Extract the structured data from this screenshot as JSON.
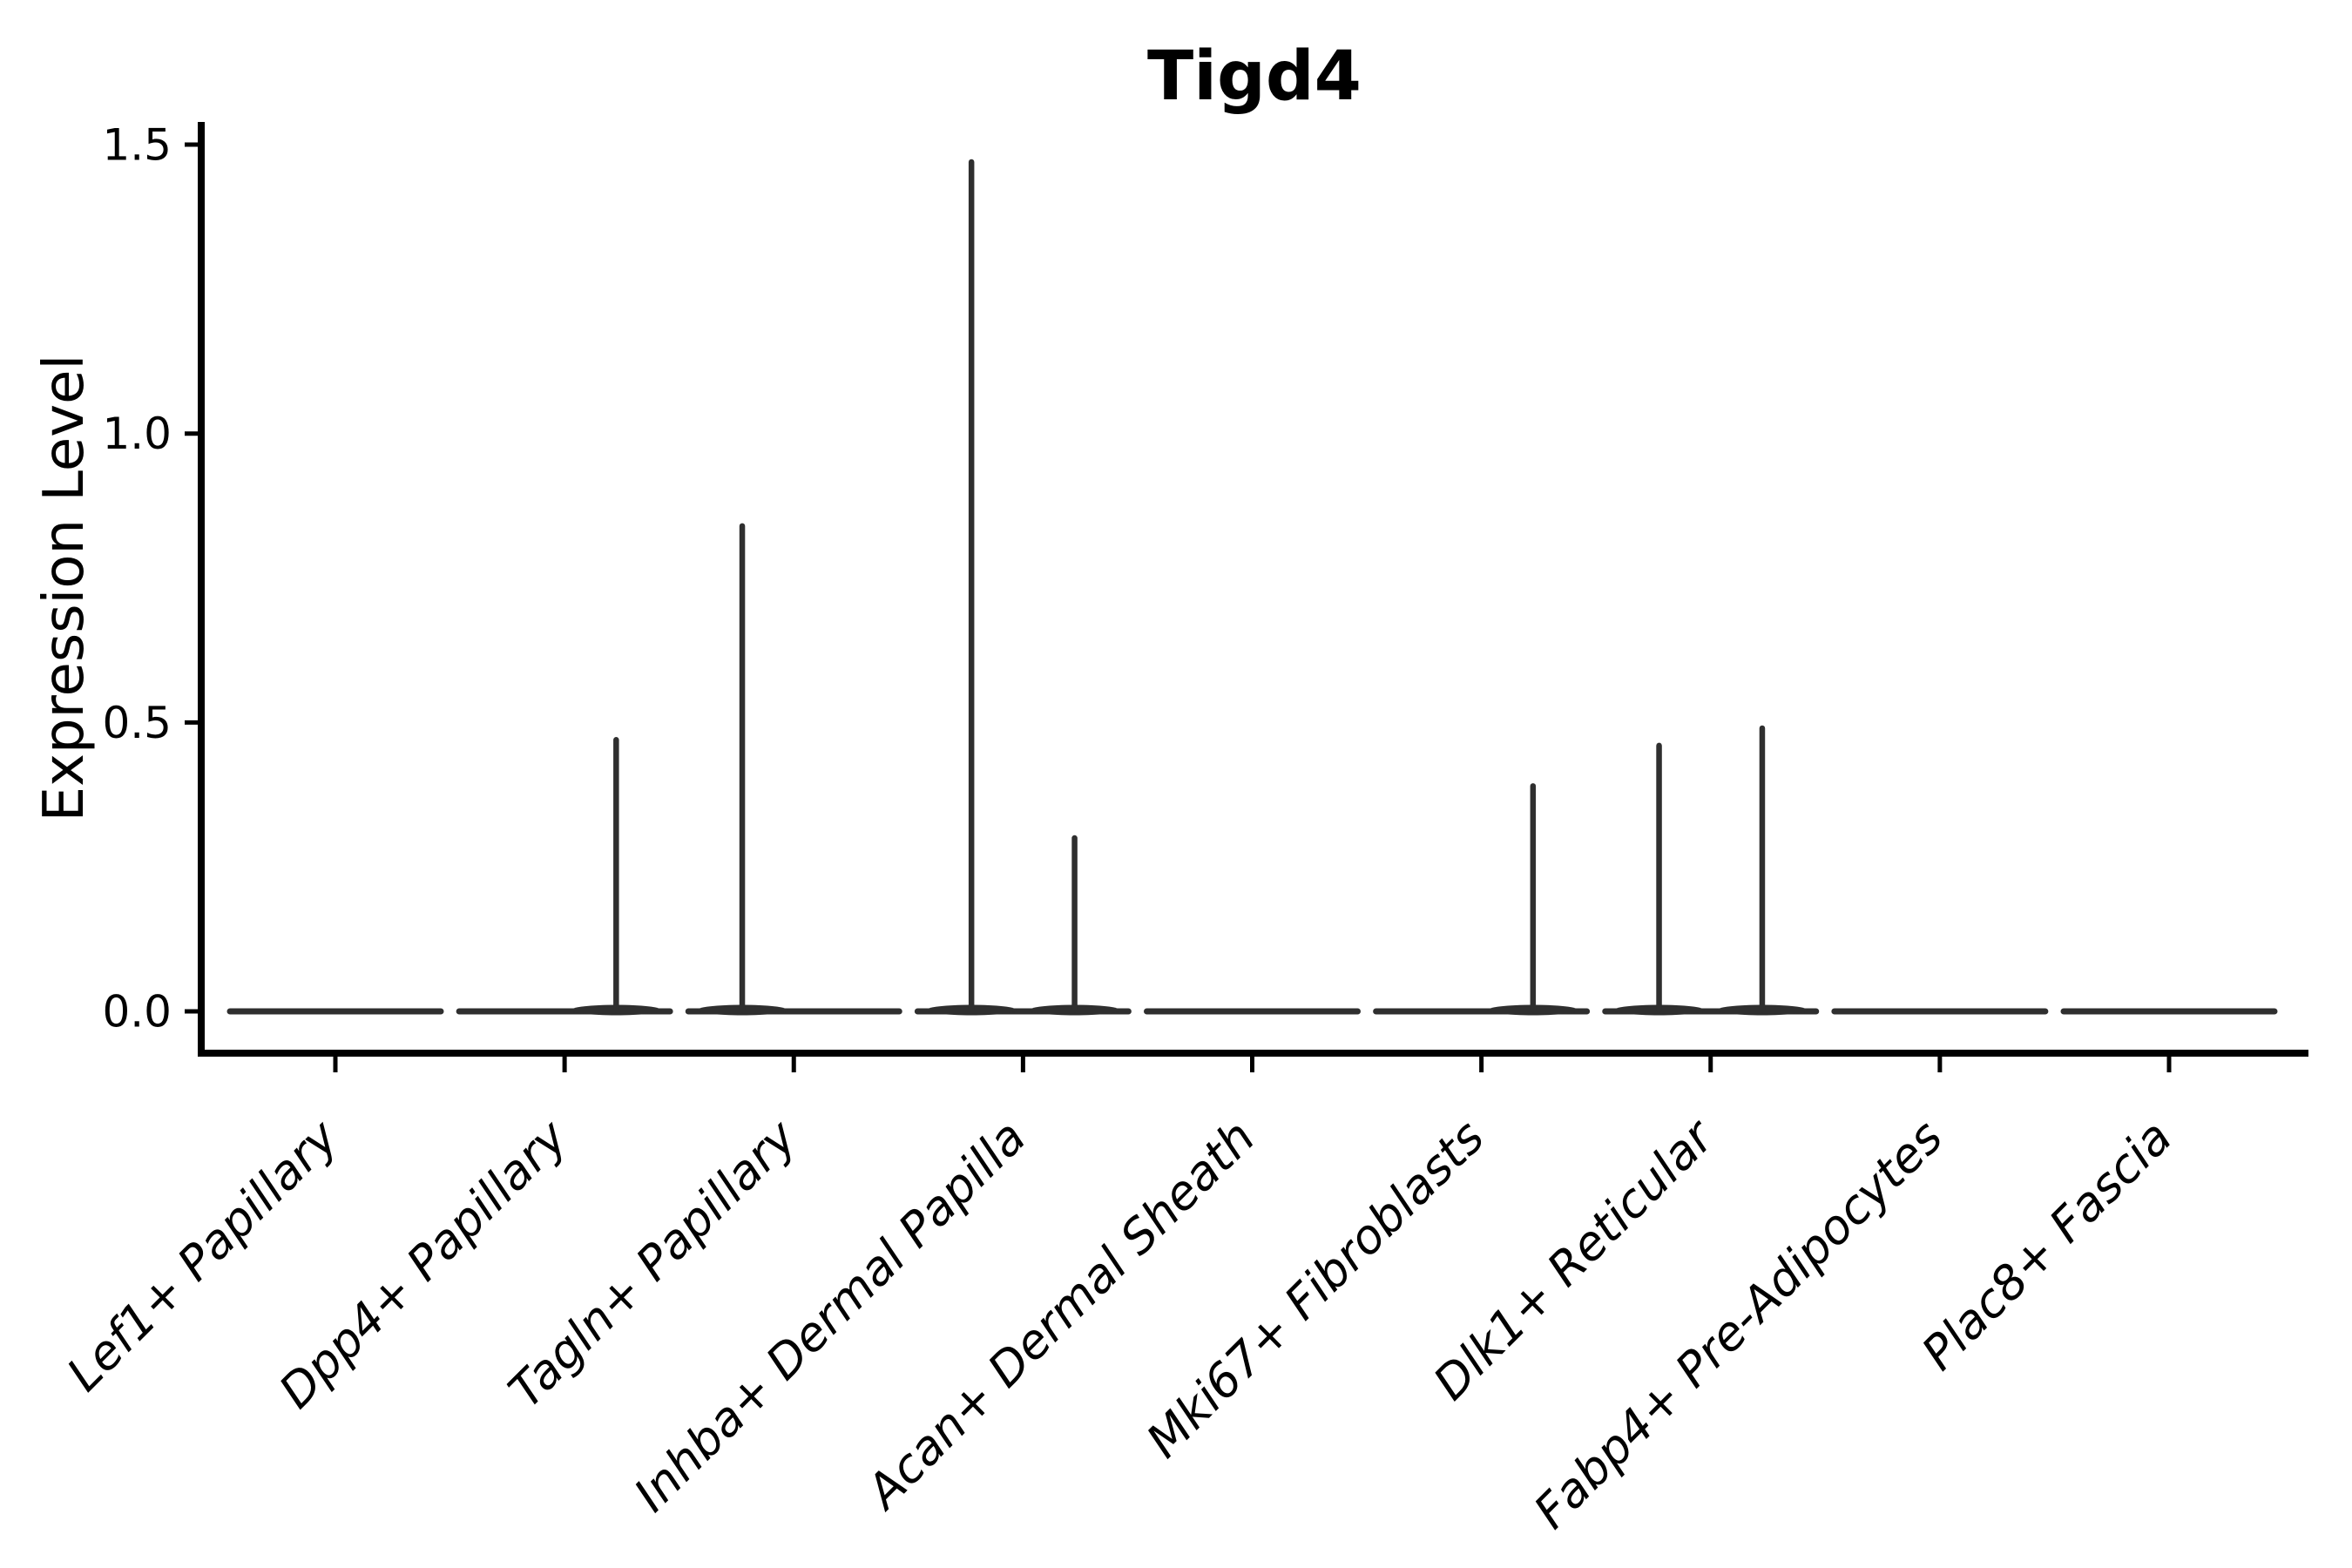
{
  "figure": {
    "background": "#ffffff"
  },
  "colors": {
    "violin": "#2f2f2f",
    "axis": "#000000",
    "text": "#000000"
  },
  "chart_data": {
    "type": "violin",
    "title": "Tigd4",
    "xlabel": "",
    "ylabel": "Expression Level",
    "ylim": [
      0,
      1.5
    ],
    "yticks": [
      0.0,
      0.5,
      1.0,
      1.5
    ],
    "ytick_labels": [
      "0.0",
      "0.5",
      "1.0",
      "1.5"
    ],
    "grid": false,
    "legend": "none",
    "categories": [
      "Lef1+ Papillary",
      "Dpp4+ Papillary",
      "Tagln+ Papillary",
      "Inhba+ Dermal Papilla",
      "Acan+ Dermal Sheath",
      "Mki67+ Fibroblasts",
      "Dlk1+ Reticular",
      "Fabp4+ Pre-Adipocytes",
      "Plac8+ Fascia"
    ],
    "series": [
      {
        "name": "Lef1+ Papillary",
        "baseline": 0.0,
        "spikes": []
      },
      {
        "name": "Dpp4+ Papillary",
        "baseline": 0.0,
        "spikes": [
          {
            "value": 0.47,
            "offset": 0.225
          }
        ]
      },
      {
        "name": "Tagln+ Papillary",
        "baseline": 0.0,
        "spikes": [
          {
            "value": 0.84,
            "offset": -0.225
          }
        ]
      },
      {
        "name": "Inhba+ Dermal Papilla",
        "baseline": 0.0,
        "spikes": [
          {
            "value": 1.47,
            "offset": -0.225
          },
          {
            "value": 0.3,
            "offset": 0.225
          }
        ]
      },
      {
        "name": "Acan+ Dermal Sheath",
        "baseline": 0.0,
        "spikes": []
      },
      {
        "name": "Mki67+ Fibroblasts",
        "baseline": 0.0,
        "spikes": [
          {
            "value": 0.39,
            "offset": 0.225
          }
        ]
      },
      {
        "name": "Dlk1+ Reticular",
        "baseline": 0.0,
        "spikes": [
          {
            "value": 0.46,
            "offset": -0.225
          },
          {
            "value": 0.49,
            "offset": 0.225
          }
        ]
      },
      {
        "name": "Fabp4+ Pre-Adipocytes",
        "baseline": 0.0,
        "spikes": []
      },
      {
        "name": "Plac8+ Fascia",
        "baseline": 0.0,
        "spikes": []
      }
    ]
  }
}
